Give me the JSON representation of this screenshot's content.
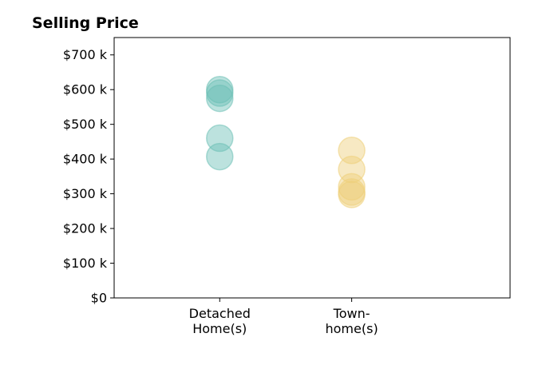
{
  "chart_data": {
    "type": "scatter",
    "title": "Selling Price",
    "xlabel": "",
    "ylabel": "",
    "categories": [
      [
        "Detached",
        "Home(s)"
      ],
      [
        "Town-",
        "home(s)"
      ]
    ],
    "series": [
      {
        "category_index": 0,
        "color": "#6bbfb5",
        "values": [
          600000,
          590000,
          575000,
          460000,
          407000
        ]
      },
      {
        "category_index": 1,
        "color": "#eecf79",
        "values": [
          425000,
          370000,
          320000,
          305000,
          298000
        ]
      }
    ],
    "ylim": [
      0,
      750000
    ],
    "yticks": [
      0,
      100000,
      200000,
      300000,
      400000,
      500000,
      600000,
      700000
    ],
    "ytick_labels": [
      "$0",
      "$100 k",
      "$200 k",
      "$300 k",
      "$400 k",
      "$500 k",
      "$600 k",
      "$700 k"
    ],
    "xlim": [
      -0.8,
      2.2
    ],
    "grid": false,
    "legend": "none",
    "marker_opacity": 0.45
  }
}
